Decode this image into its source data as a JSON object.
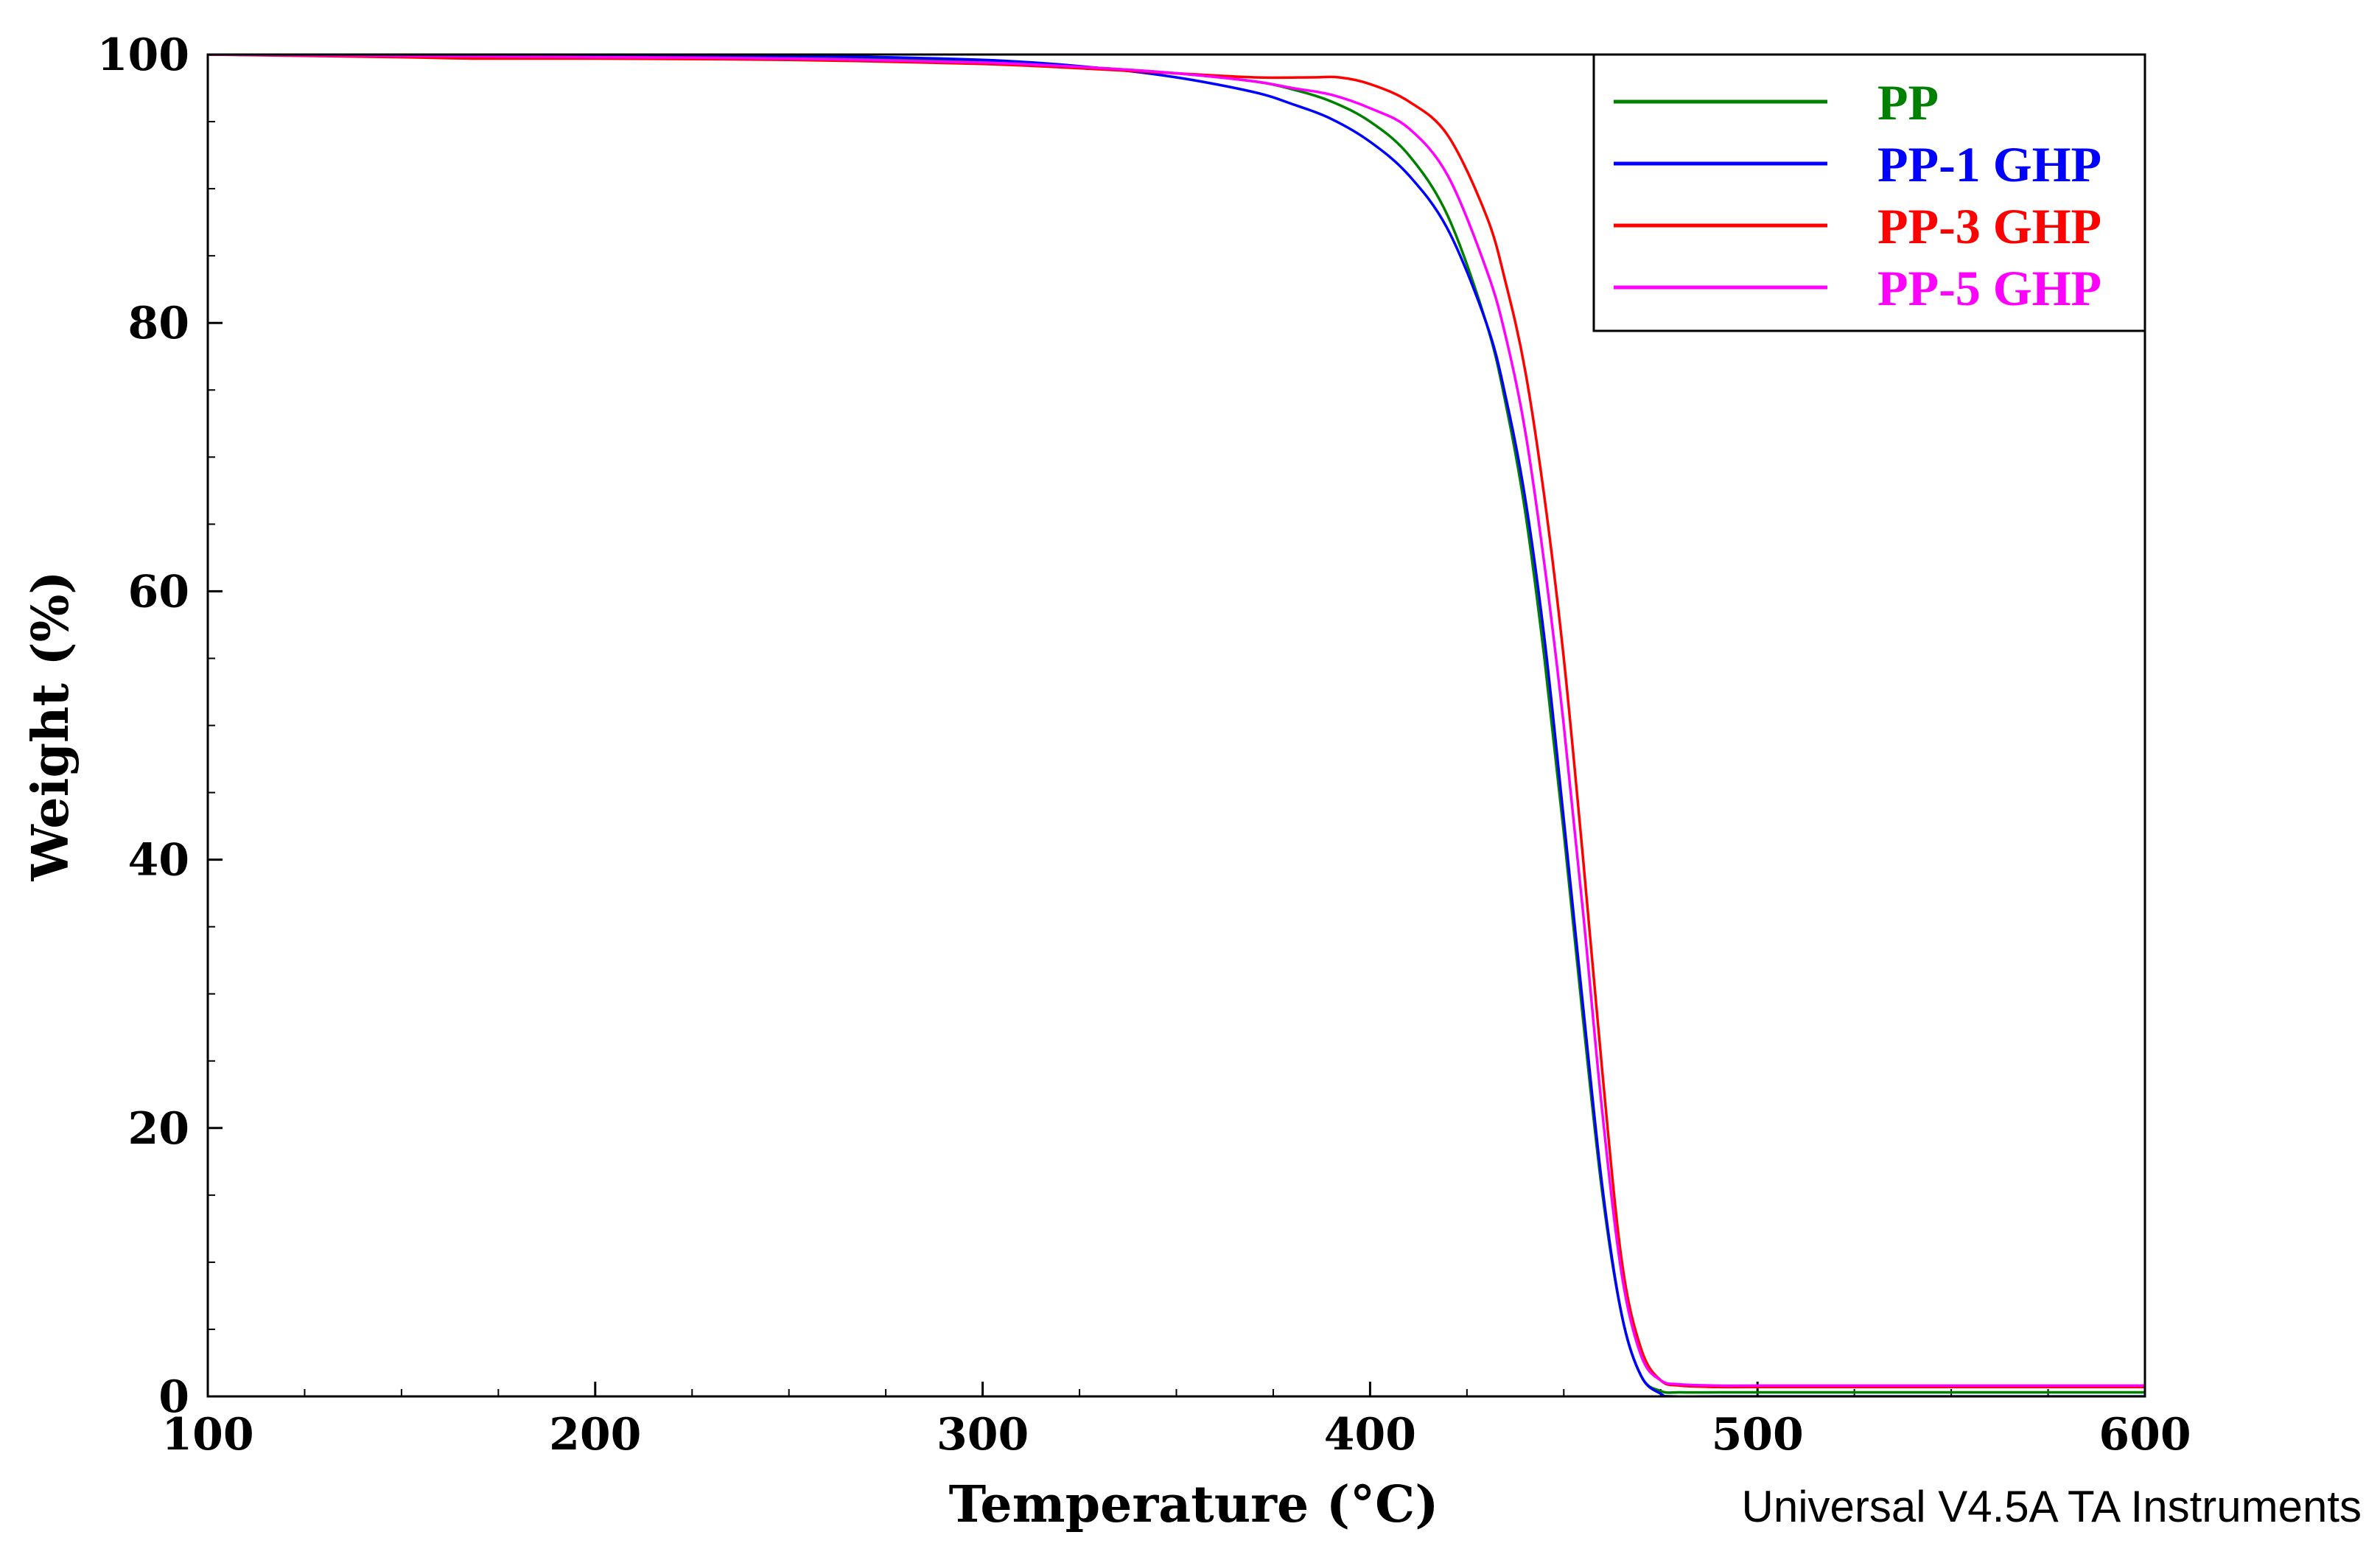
{
  "chart_data": {
    "type": "line",
    "title": "",
    "xlabel": "Temperature (°C)",
    "ylabel": "Weight (%)",
    "xlim": [
      100,
      600
    ],
    "ylim": [
      0,
      100
    ],
    "xticks": [
      100,
      200,
      300,
      400,
      500,
      600
    ],
    "yticks": [
      0,
      20,
      40,
      60,
      80,
      100
    ],
    "x_minor_step": 25,
    "y_minor_step": 5,
    "grid": false,
    "legend_position": "top-right",
    "footer": "Universal V4.5A TA Instruments",
    "series": [
      {
        "name": "PP",
        "color": "#008000",
        "x": [
          100,
          150,
          200,
          250,
          300,
          330,
          350,
          370,
          380,
          390,
          400,
          410,
          420,
          430,
          435,
          440,
          445,
          450,
          455,
          460,
          465,
          470,
          475,
          480,
          490,
          500,
          550,
          600
        ],
        "y": [
          100,
          99.9,
          99.9,
          99.8,
          99.5,
          99.0,
          98.6,
          98.0,
          97.4,
          96.5,
          95.0,
          92.5,
          88.0,
          80.0,
          74.0,
          66.0,
          55.0,
          42.0,
          28.0,
          15.0,
          6.0,
          1.5,
          0.4,
          0.3,
          0.3,
          0.3,
          0.3,
          0.3
        ]
      },
      {
        "name": "PP-1 GHP",
        "color": "#0000ff",
        "x": [
          100,
          150,
          200,
          250,
          300,
          330,
          350,
          370,
          380,
          390,
          400,
          410,
          420,
          430,
          435,
          440,
          445,
          450,
          455,
          460,
          465,
          470,
          475,
          478,
          490,
          500,
          550,
          600
        ],
        "y": [
          100,
          99.9,
          99.9,
          99.9,
          99.6,
          99.0,
          98.3,
          97.2,
          96.3,
          95.2,
          93.5,
          91.0,
          87.0,
          80.0,
          74.5,
          67.0,
          56.5,
          43.0,
          29.0,
          15.5,
          6.0,
          1.5,
          0.2,
          0.0,
          0.0,
          0.0,
          0.0,
          0.0
        ]
      },
      {
        "name": "PP-3 GHP",
        "color": "#ff0000",
        "x": [
          100,
          150,
          170,
          200,
          250,
          300,
          330,
          350,
          370,
          385,
          392,
          400,
          410,
          420,
          430,
          435,
          440,
          445,
          450,
          455,
          460,
          465,
          470,
          475,
          480,
          490,
          500,
          550,
          600
        ],
        "y": [
          100,
          99.8,
          99.7,
          99.7,
          99.6,
          99.3,
          98.9,
          98.6,
          98.3,
          98.3,
          98.3,
          97.8,
          96.5,
          94.0,
          88.0,
          83.0,
          76.5,
          67.0,
          55.0,
          40.0,
          24.0,
          10.0,
          3.5,
          1.2,
          0.8,
          0.7,
          0.7,
          0.7,
          0.7
        ]
      },
      {
        "name": "PP-5 GHP",
        "color": "#ff00ff",
        "x": [
          100,
          150,
          200,
          250,
          300,
          330,
          350,
          370,
          380,
          390,
          400,
          410,
          420,
          430,
          435,
          440,
          445,
          450,
          455,
          460,
          465,
          470,
          475,
          480,
          490,
          500,
          550,
          600
        ],
        "y": [
          100,
          99.9,
          99.8,
          99.7,
          99.4,
          99.0,
          98.6,
          98.0,
          97.5,
          97.0,
          96.0,
          94.5,
          91.0,
          84.0,
          79.0,
          72.0,
          62.0,
          50.0,
          36.0,
          21.0,
          9.0,
          3.0,
          1.2,
          0.9,
          0.8,
          0.8,
          0.8,
          0.8
        ]
      }
    ]
  }
}
